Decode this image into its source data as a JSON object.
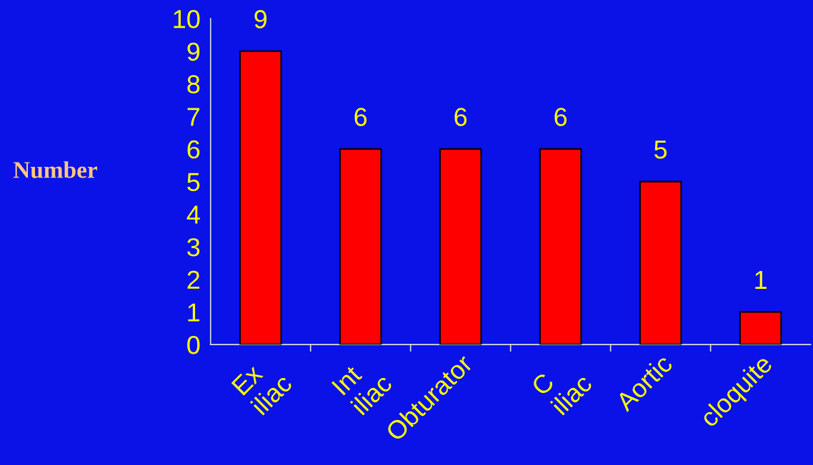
{
  "chart_data": {
    "type": "bar",
    "ylabel": "Number",
    "categories": [
      "Ex\niliac",
      "Int\niliac",
      "Obturator",
      "C\niliac",
      "Aortic",
      "cloquite"
    ],
    "values": [
      9,
      6,
      6,
      6,
      5,
      1
    ],
    "color": "#ff0000",
    "ylim": [
      0,
      10
    ],
    "yticks": [
      0,
      1,
      2,
      3,
      4,
      5,
      6,
      7,
      8,
      9,
      10
    ],
    "grid": false,
    "data_labels": true
  }
}
